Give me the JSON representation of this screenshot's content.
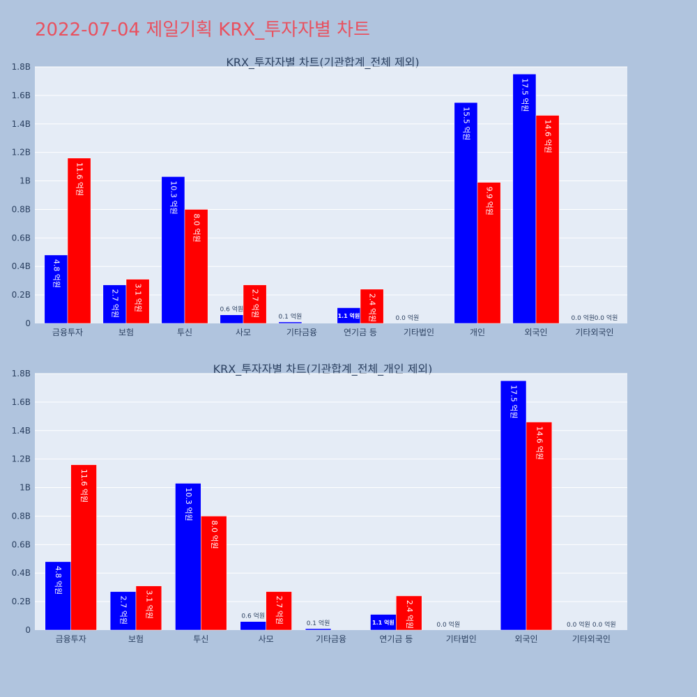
{
  "page": {
    "title": "2022-07-04 제일기획 KRX_투자자별 차트"
  },
  "colors": {
    "background": "#b0c4de",
    "plot_bg": "#e5ecf6",
    "title": "#e8515f",
    "series_a": "#0000ff",
    "series_b": "#ff0000"
  },
  "chart_data": [
    {
      "type": "bar",
      "title": "KRX_투자자별 차트(기관합계_전체 제외)",
      "categories": [
        "금융투자",
        "보험",
        "투신",
        "사모",
        "기타금융",
        "연기금 등",
        "기타법인",
        "개인",
        "외국인",
        "기타외국인"
      ],
      "series": [
        {
          "values": [
            480000000,
            270000000,
            1030000000,
            60000000,
            10000000,
            110000000,
            0,
            1550000000,
            1750000000,
            0
          ],
          "labels": [
            "4.8 억원",
            "2.7 억원",
            "10.3 억원",
            "0.6 억원",
            "0.1 억원",
            "1.1 억원",
            "0.0 억원",
            "15.5 억원",
            "17.5 억원",
            "0.0 억원"
          ]
        },
        {
          "values": [
            1160000000,
            310000000,
            800000000,
            270000000,
            0,
            240000000,
            0,
            990000000,
            1460000000,
            0
          ],
          "labels": [
            "11.6 억원",
            "3.1 억원",
            "8.0 억원",
            "2.7 억원",
            "",
            "2.4 억원",
            "",
            "9.9 억원",
            "14.6 억원",
            "0.0 억원"
          ]
        }
      ],
      "yticks": [
        "0",
        "0.2B",
        "0.4B",
        "0.6B",
        "0.8B",
        "1B",
        "1.2B",
        "1.4B",
        "1.6B",
        "1.8B"
      ],
      "ylim": [
        0,
        1800000000
      ],
      "grid": true
    },
    {
      "type": "bar",
      "title": "KRX_투자자별 차트(기관합계_전체_개인 제외)",
      "categories": [
        "금융투자",
        "보험",
        "투신",
        "사모",
        "기타금융",
        "연기금 등",
        "기타법인",
        "외국인",
        "기타외국인"
      ],
      "series": [
        {
          "values": [
            480000000,
            270000000,
            1030000000,
            60000000,
            10000000,
            110000000,
            0,
            1750000000,
            0
          ],
          "labels": [
            "4.8 억원",
            "2.7 억원",
            "10.3 억원",
            "0.6 억원",
            "0.1 억원",
            "1.1 억원",
            "0.0 억원",
            "17.5 억원",
            "0.0 억원"
          ]
        },
        {
          "values": [
            1160000000,
            310000000,
            800000000,
            270000000,
            0,
            240000000,
            0,
            1460000000,
            0
          ],
          "labels": [
            "11.6 억원",
            "3.1 억원",
            "8.0 억원",
            "2.7 억원",
            "",
            "2.4 억원",
            "",
            "14.6 억원",
            "0.0 억원"
          ]
        }
      ],
      "yticks": [
        "0",
        "0.2B",
        "0.4B",
        "0.6B",
        "0.8B",
        "1B",
        "1.2B",
        "1.4B",
        "1.6B",
        "1.8B"
      ],
      "ylim": [
        0,
        1800000000
      ],
      "grid": true
    }
  ]
}
